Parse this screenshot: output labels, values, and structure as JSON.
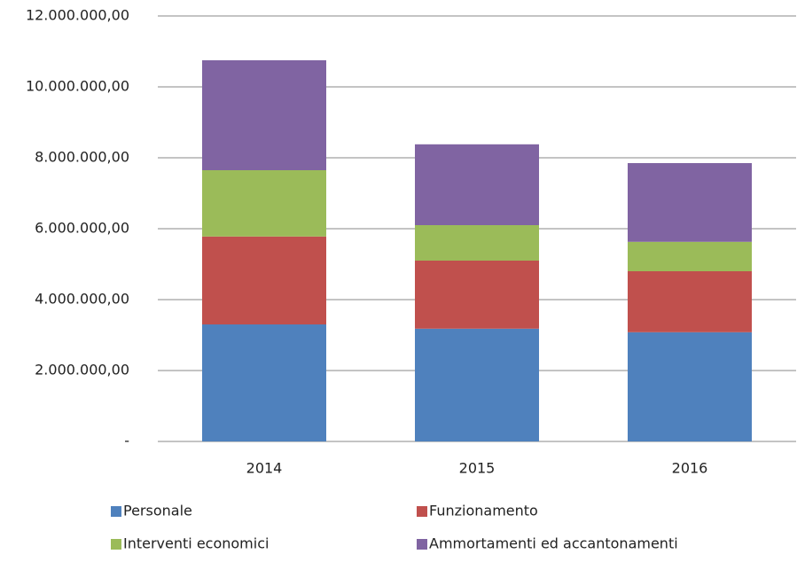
{
  "chart_data": {
    "type": "stacked_bar",
    "categories": [
      "2014",
      "2015",
      "2016"
    ],
    "series": [
      {
        "name": "Personale",
        "color": "#4f81bd",
        "values": [
          3300000,
          3180000,
          3080000
        ]
      },
      {
        "name": "Funzionamento",
        "color": "#c0504d",
        "values": [
          2480000,
          1920000,
          1720000
        ]
      },
      {
        "name": "Interventi economici",
        "color": "#9bbb59",
        "values": [
          1870000,
          1000000,
          830000
        ]
      },
      {
        "name": "Ammortamenti ed accantonamenti",
        "color": "#8064a2",
        "values": [
          3100000,
          2280000,
          2220000
        ]
      }
    ],
    "ylim": [
      0,
      12000000
    ],
    "yticks": [
      {
        "value": 0,
        "label": "-"
      },
      {
        "value": 2000000,
        "label": "2.000.000,00"
      },
      {
        "value": 4000000,
        "label": "4.000.000,00"
      },
      {
        "value": 6000000,
        "label": "6.000.000,00"
      },
      {
        "value": 8000000,
        "label": "8.000.000,00"
      },
      {
        "value": 10000000,
        "label": "10.000.000,00"
      },
      {
        "value": 12000000,
        "label": "12.000.000,00"
      }
    ],
    "grid": true,
    "legend": "bottom"
  }
}
